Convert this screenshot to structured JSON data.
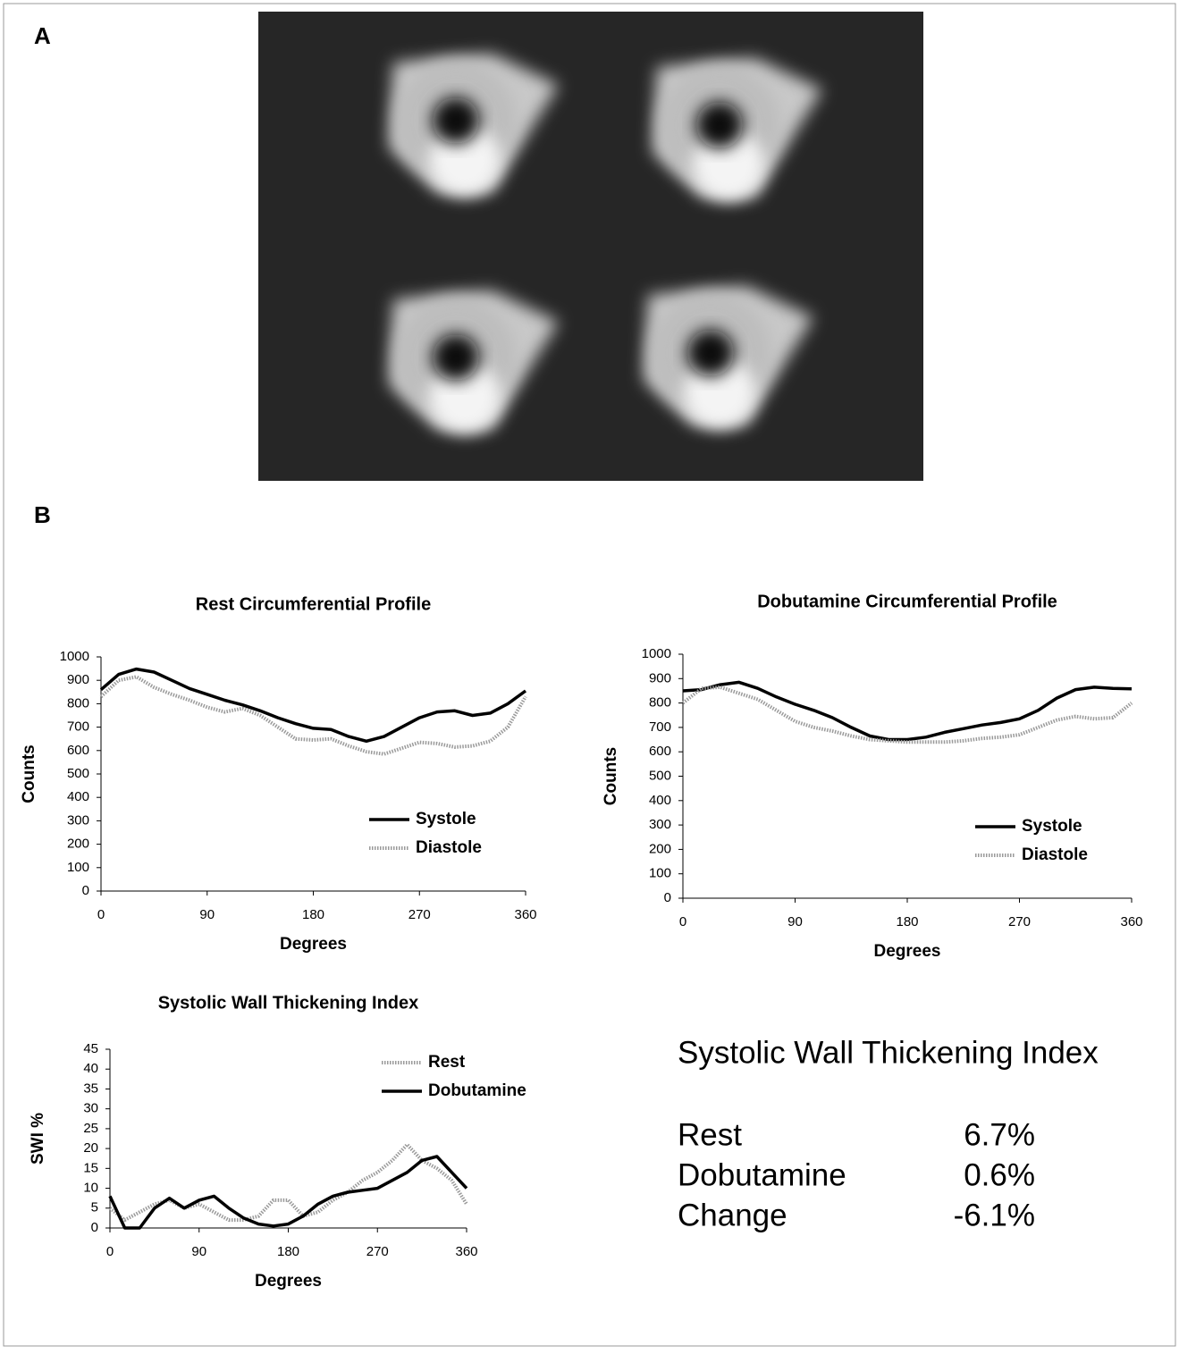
{
  "panels": {
    "a": "A",
    "b": "B"
  },
  "chart_data": [
    {
      "type": "line",
      "title": "Rest Circumferential Profile",
      "xlabel": "Degrees",
      "ylabel": "Counts",
      "x": [
        0,
        15,
        30,
        45,
        60,
        75,
        90,
        105,
        120,
        135,
        150,
        165,
        180,
        195,
        210,
        225,
        240,
        255,
        270,
        285,
        300,
        315,
        330,
        345,
        360
      ],
      "series": [
        {
          "name": "Systole",
          "color": "#000000",
          "dashed": false,
          "values": [
            860,
            925,
            948,
            935,
            900,
            865,
            840,
            815,
            795,
            770,
            740,
            715,
            695,
            690,
            660,
            640,
            660,
            700,
            740,
            765,
            770,
            750,
            760,
            800,
            855
          ]
        },
        {
          "name": "Diastole",
          "color": "#9a9a9a",
          "dashed": true,
          "values": [
            830,
            900,
            915,
            870,
            840,
            815,
            785,
            765,
            780,
            750,
            700,
            650,
            645,
            650,
            620,
            595,
            585,
            610,
            635,
            630,
            615,
            620,
            640,
            700,
            830
          ]
        }
      ],
      "xlim": [
        0,
        360
      ],
      "ylim": [
        0,
        1000
      ],
      "xticks": [
        0,
        90,
        180,
        270,
        360
      ],
      "yticks": [
        0,
        100,
        200,
        300,
        400,
        500,
        600,
        700,
        800,
        900,
        1000
      ],
      "legend": "lower right"
    },
    {
      "type": "line",
      "title": "Dobutamine Circumferential Profile",
      "xlabel": "Degrees",
      "ylabel": "Counts",
      "x": [
        0,
        15,
        30,
        45,
        60,
        75,
        90,
        105,
        120,
        135,
        150,
        165,
        180,
        195,
        210,
        225,
        240,
        255,
        270,
        285,
        300,
        315,
        330,
        345,
        360
      ],
      "series": [
        {
          "name": "Systole",
          "color": "#000000",
          "dashed": false,
          "values": [
            850,
            855,
            875,
            885,
            860,
            825,
            795,
            770,
            740,
            700,
            665,
            650,
            650,
            660,
            680,
            695,
            710,
            720,
            735,
            770,
            820,
            855,
            865,
            860,
            858
          ]
        },
        {
          "name": "Diastole",
          "color": "#9a9a9a",
          "dashed": true,
          "values": [
            800,
            860,
            865,
            840,
            815,
            770,
            725,
            700,
            685,
            665,
            650,
            645,
            640,
            640,
            640,
            645,
            655,
            660,
            670,
            700,
            730,
            745,
            735,
            740,
            800
          ]
        }
      ],
      "xlim": [
        0,
        360
      ],
      "ylim": [
        0,
        1000
      ],
      "xticks": [
        0,
        90,
        180,
        270,
        360
      ],
      "yticks": [
        0,
        100,
        200,
        300,
        400,
        500,
        600,
        700,
        800,
        900,
        1000
      ],
      "legend": "lower right"
    },
    {
      "type": "line",
      "title": "Systolic Wall Thickening Index",
      "xlabel": "Degrees",
      "ylabel": "SWI %",
      "x": [
        0,
        15,
        30,
        45,
        60,
        75,
        90,
        105,
        120,
        135,
        150,
        165,
        180,
        195,
        210,
        225,
        240,
        255,
        270,
        285,
        300,
        315,
        330,
        345,
        360
      ],
      "series": [
        {
          "name": "Rest",
          "color": "#9a9a9a",
          "dashed": true,
          "values": [
            5,
            2,
            4,
            6,
            7,
            5,
            6,
            4,
            2,
            2,
            3,
            7,
            7,
            3,
            4,
            7,
            9,
            12,
            14,
            17,
            21,
            17,
            15,
            12,
            6
          ]
        },
        {
          "name": "Dobutamine",
          "color": "#000000",
          "dashed": false,
          "values": [
            8,
            0,
            0,
            5,
            7.5,
            5,
            7,
            8,
            5,
            2.5,
            1,
            0.5,
            1,
            3,
            6,
            8,
            9,
            9.5,
            10,
            12,
            14,
            17,
            18,
            14,
            10
          ]
        }
      ],
      "xlim": [
        0,
        360
      ],
      "ylim": [
        0,
        45
      ],
      "xticks": [
        0,
        90,
        180,
        270,
        360
      ],
      "yticks": [
        0,
        5,
        10,
        15,
        20,
        25,
        30,
        35,
        40,
        45
      ],
      "legend": "upper right"
    }
  ],
  "swti": {
    "title": "Systolic Wall Thickening Index",
    "rows": [
      [
        "Rest",
        "6.7%"
      ],
      [
        "Dobutamine",
        "0.6%"
      ],
      [
        "Change",
        "-6.1%"
      ]
    ]
  }
}
